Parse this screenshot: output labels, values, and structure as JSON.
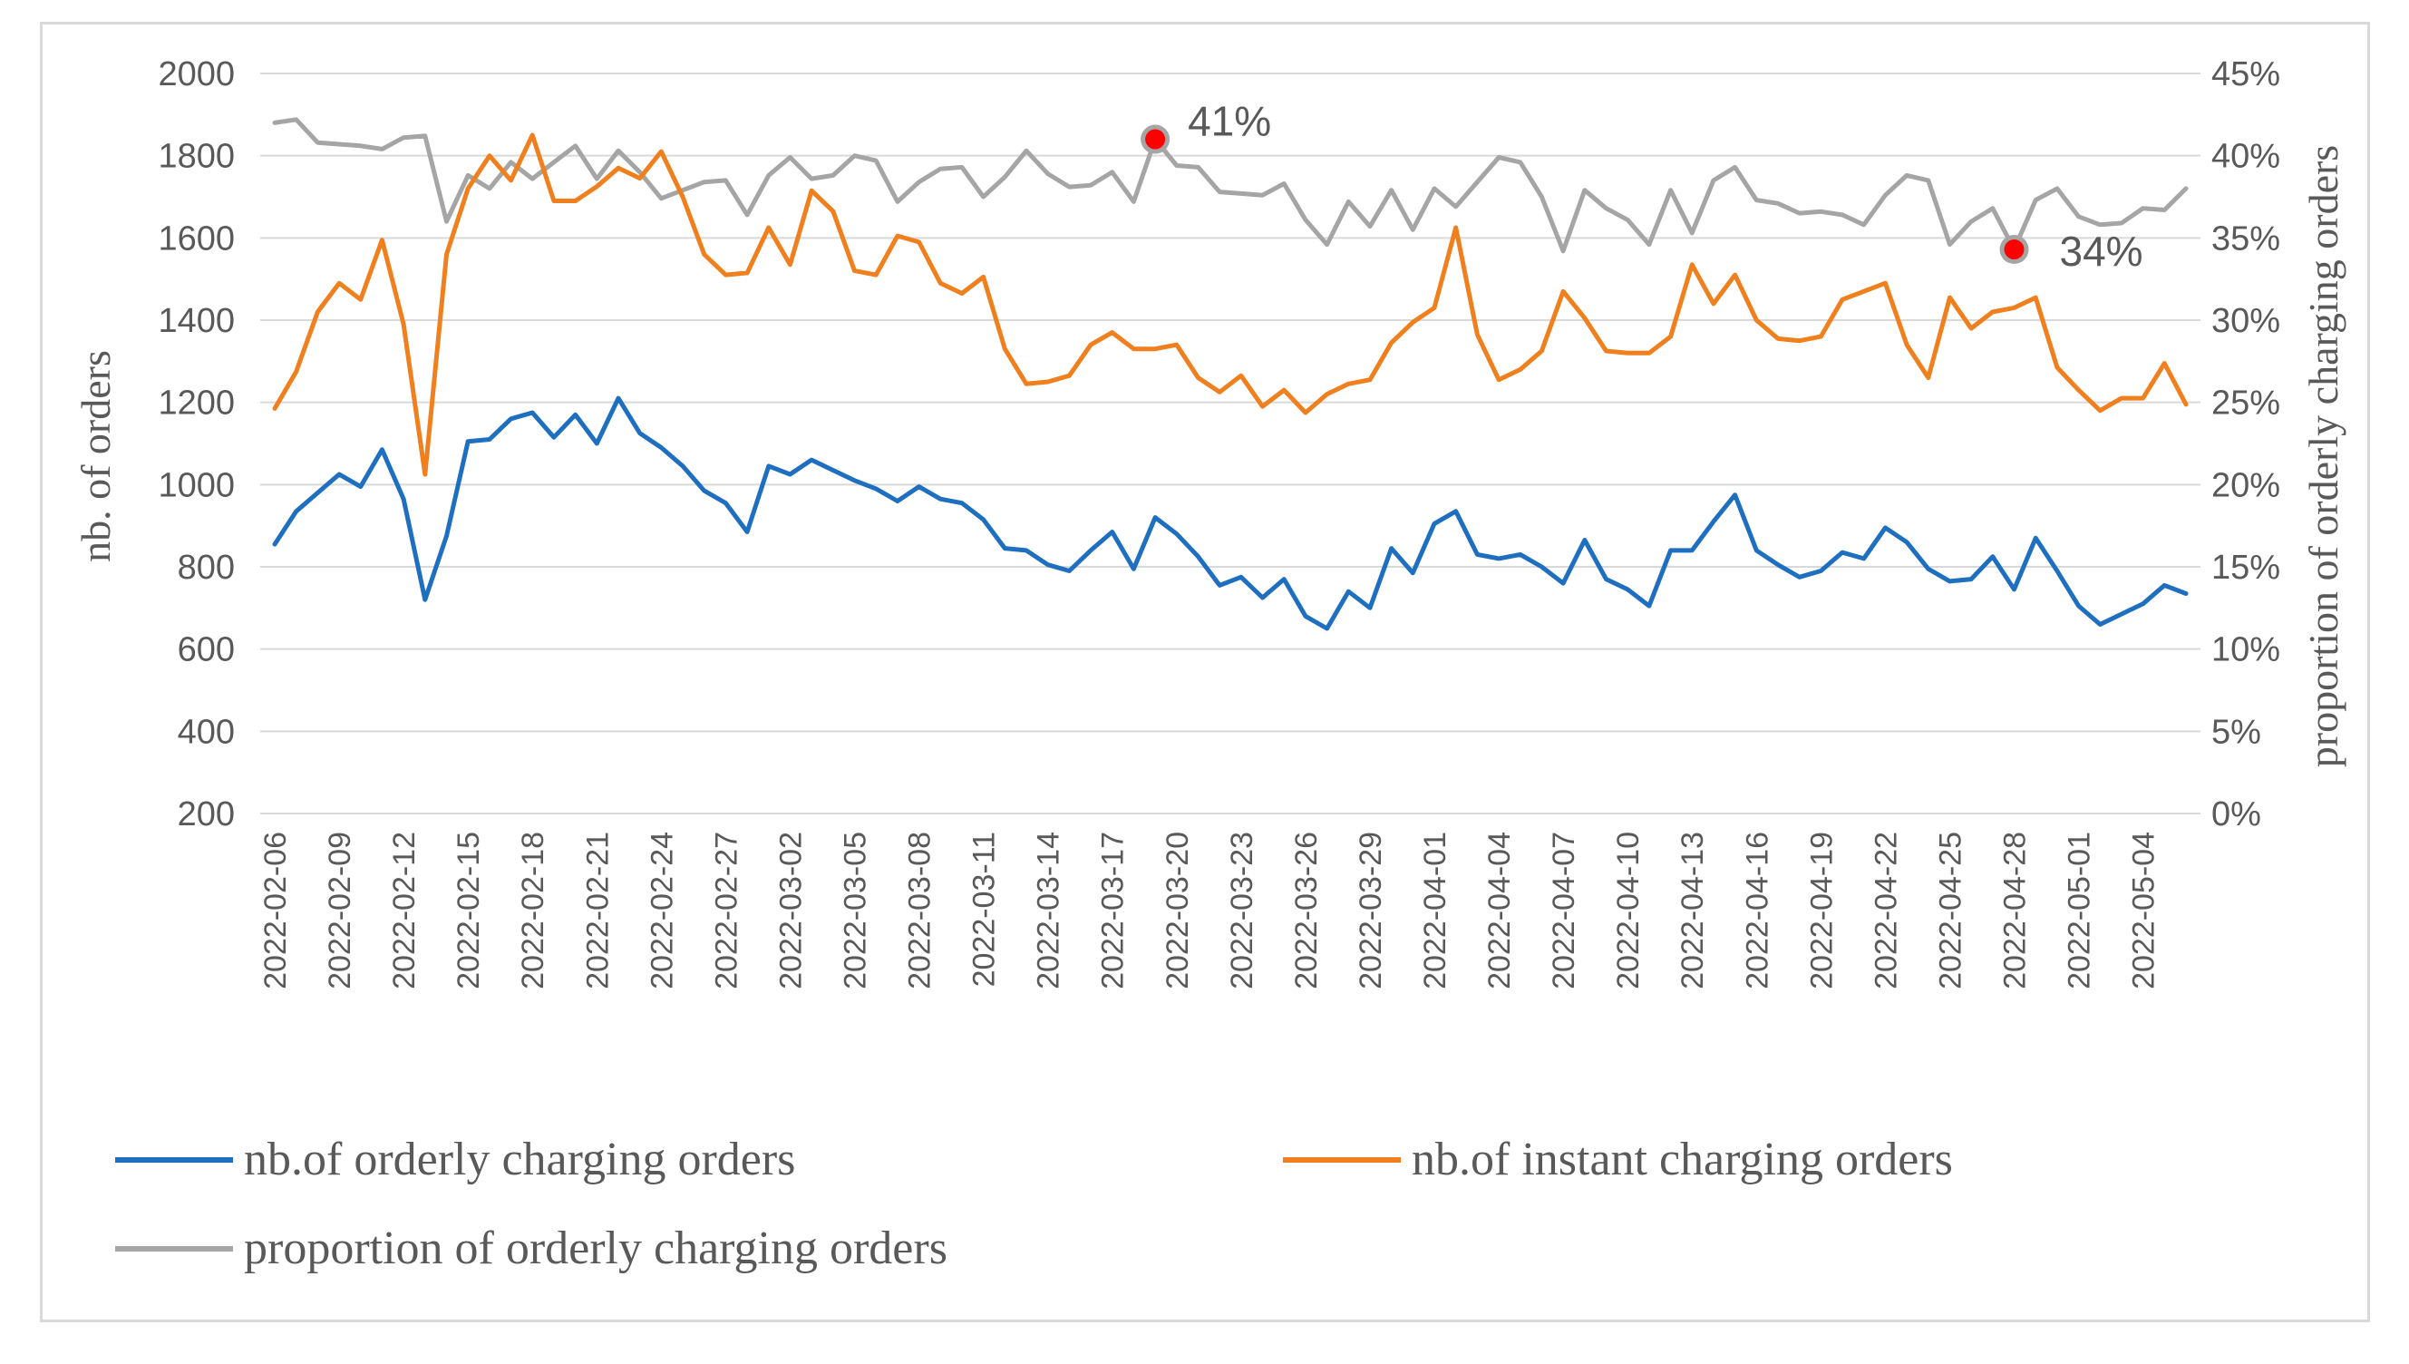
{
  "chart_data": {
    "type": "line",
    "title": "",
    "ylabel_left": "nb. of orders",
    "ylabel_right": "proportion of orderly charging orders",
    "ylim_left": [
      200,
      2000
    ],
    "ylim_right": [
      0,
      45
    ],
    "yticks_left": [
      "2000",
      "1800",
      "1600",
      "1400",
      "1200",
      "1000",
      "800",
      "600",
      "400",
      "200"
    ],
    "yticks_right": [
      "45%",
      "40%",
      "35%",
      "30%",
      "25%",
      "20%",
      "15%",
      "10%",
      "5%",
      "0%"
    ],
    "grid": true,
    "legend_position": "bottom",
    "x_start": "2022-02-06",
    "x_end": "2022-05-06",
    "x_tick_labels": [
      "2022-02-06",
      "2022-02-09",
      "2022-02-12",
      "2022-02-15",
      "2022-02-18",
      "2022-02-21",
      "2022-02-24",
      "2022-02-27",
      "2022-03-02",
      "2022-03-05",
      "2022-03-08",
      "2022-03-11",
      "2022-03-14",
      "2022-03-17",
      "2022-03-20",
      "2022-03-23",
      "2022-03-26",
      "2022-03-29",
      "2022-04-01",
      "2022-04-04",
      "2022-04-07",
      "2022-04-10",
      "2022-04-13",
      "2022-04-16",
      "2022-04-19",
      "2022-04-22",
      "2022-04-25",
      "2022-04-28",
      "2022-05-01",
      "2022-05-04"
    ],
    "series": [
      {
        "name": "nb.of orderly charging orders",
        "axis": "left",
        "color": "#1f6fc1",
        "values": [
          855,
          935,
          980,
          1025,
          995,
          1085,
          965,
          720,
          875,
          1105,
          1110,
          1160,
          1175,
          1115,
          1170,
          1100,
          1210,
          1125,
          1090,
          1045,
          985,
          955,
          885,
          1045,
          1025,
          1060,
          1035,
          1010,
          990,
          960,
          995,
          965,
          955,
          915,
          845,
          840,
          805,
          790,
          840,
          885,
          795,
          920,
          880,
          825,
          755,
          775,
          725,
          770,
          680,
          650,
          740,
          700,
          845,
          785,
          905,
          935,
          830,
          820,
          830,
          800,
          760,
          865,
          770,
          745,
          705,
          840,
          840,
          910,
          975,
          840,
          805,
          775,
          790,
          835,
          820,
          895,
          860,
          795,
          765,
          770,
          825,
          745,
          870,
          790,
          705,
          660,
          685,
          710,
          755,
          735
        ]
      },
      {
        "name": "nb.of instant charging orders",
        "axis": "left",
        "color": "#f07f1e",
        "values": [
          1185,
          1275,
          1420,
          1490,
          1450,
          1595,
          1390,
          1025,
          1560,
          1720,
          1800,
          1740,
          1850,
          1690,
          1690,
          1725,
          1770,
          1745,
          1810,
          1700,
          1560,
          1510,
          1515,
          1625,
          1535,
          1715,
          1665,
          1520,
          1510,
          1605,
          1590,
          1490,
          1465,
          1505,
          1330,
          1245,
          1250,
          1265,
          1340,
          1370,
          1330,
          1330,
          1340,
          1260,
          1225,
          1265,
          1190,
          1230,
          1175,
          1220,
          1245,
          1255,
          1345,
          1395,
          1430,
          1625,
          1365,
          1255,
          1280,
          1325,
          1470,
          1405,
          1325,
          1320,
          1320,
          1360,
          1535,
          1440,
          1510,
          1400,
          1355,
          1350,
          1360,
          1450,
          1470,
          1490,
          1340,
          1260,
          1455,
          1380,
          1420,
          1430,
          1455,
          1285,
          1230,
          1180,
          1210,
          1210,
          1295,
          1195
        ]
      },
      {
        "name": "proportion of orderly charging orders",
        "axis": "right",
        "color": "#a5a5a5",
        "values": [
          42.0,
          42.2,
          40.8,
          40.7,
          40.6,
          40.4,
          41.1,
          41.2,
          36.0,
          38.8,
          38.0,
          39.6,
          38.6,
          39.6,
          40.6,
          38.6,
          40.3,
          39.0,
          37.4,
          37.9,
          38.4,
          38.5,
          36.4,
          38.8,
          39.9,
          38.6,
          38.8,
          40.0,
          39.7,
          37.2,
          38.4,
          39.2,
          39.3,
          37.5,
          38.7,
          40.3,
          38.9,
          38.1,
          38.2,
          39.0,
          37.2,
          41.0,
          39.4,
          39.3,
          37.8,
          37.7,
          37.6,
          38.3,
          36.1,
          34.6,
          37.2,
          35.7,
          37.9,
          35.5,
          38.0,
          36.9,
          38.4,
          39.9,
          39.6,
          37.5,
          34.2,
          37.9,
          36.8,
          36.1,
          34.6,
          37.9,
          35.3,
          38.5,
          39.3,
          37.3,
          37.1,
          36.5,
          36.6,
          36.4,
          35.8,
          37.6,
          38.8,
          38.5,
          34.6,
          36.0,
          36.8,
          34.3,
          37.3,
          38.0,
          36.3,
          35.8,
          35.9,
          36.8,
          36.7,
          38.0
        ]
      }
    ],
    "annotations": [
      {
        "label": "41%",
        "index": 41,
        "series": 2,
        "marker_color": "#ff0000"
      },
      {
        "label": "34%",
        "index": 81,
        "series": 2,
        "marker_color": "#ff0000"
      }
    ]
  }
}
